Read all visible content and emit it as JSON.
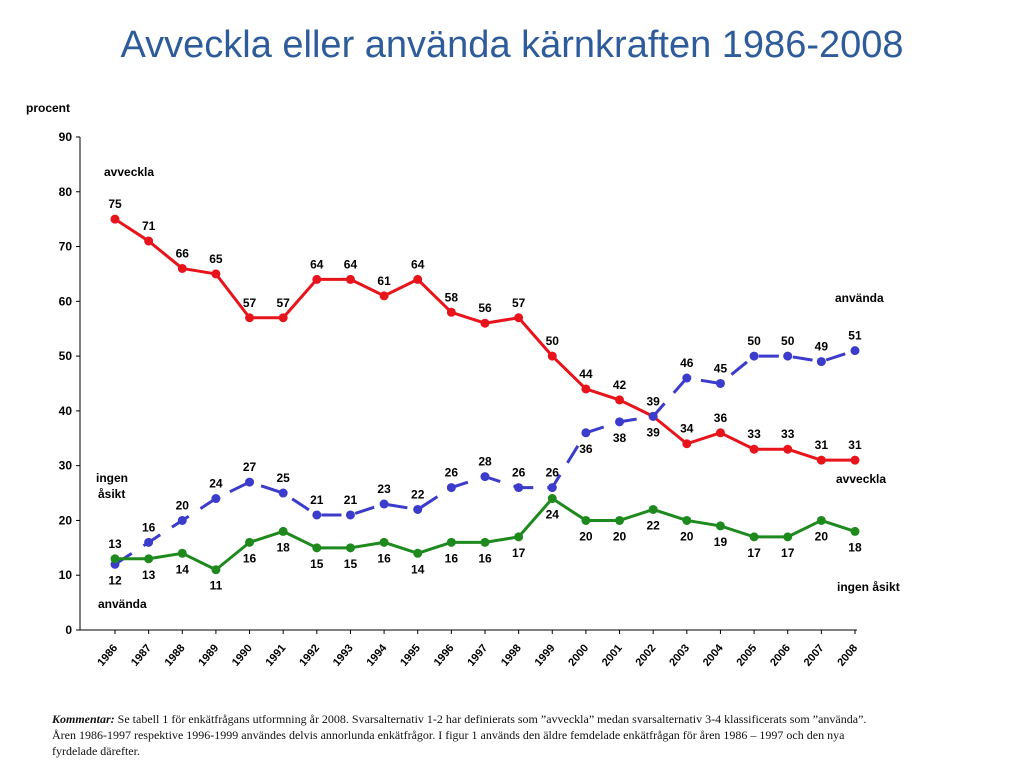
{
  "title": "Avveckla eller använda kärnkraften 1986-2008",
  "chart_data": {
    "type": "line",
    "ylabel": "procent",
    "ylim": [
      0,
      90
    ],
    "yticks": [
      0,
      10,
      20,
      30,
      40,
      50,
      60,
      70,
      80,
      90
    ],
    "categories": [
      "1986",
      "1987",
      "1988",
      "1989",
      "1990",
      "1991",
      "1992",
      "1993",
      "1994",
      "1995",
      "1996",
      "1997",
      "1998",
      "1999",
      "2000",
      "2001",
      "2002",
      "2003",
      "2004",
      "2005",
      "2006",
      "2007",
      "2008"
    ],
    "series": [
      {
        "name": "avveckla",
        "color": "#e8141c",
        "style": "solid",
        "values": [
          75,
          71,
          66,
          65,
          57,
          57,
          64,
          64,
          61,
          64,
          58,
          56,
          57,
          50,
          44,
          42,
          39,
          34,
          36,
          33,
          33,
          31,
          31
        ]
      },
      {
        "name": "använda",
        "color": "#3b3bcc",
        "style": "dashed",
        "values": [
          12,
          16,
          20,
          24,
          27,
          25,
          21,
          21,
          23,
          22,
          26,
          28,
          26,
          26,
          36,
          38,
          39,
          46,
          45,
          50,
          50,
          49,
          51
        ]
      },
      {
        "name": "ingen åsikt",
        "color": "#1e8a1e",
        "style": "solid",
        "values": [
          13,
          13,
          14,
          11,
          16,
          18,
          15,
          15,
          16,
          14,
          16,
          16,
          17,
          24,
          20,
          20,
          22,
          20,
          19,
          17,
          17,
          20,
          18
        ]
      }
    ],
    "annotations": {
      "start_labels": [
        "avveckla",
        "ingen",
        "åsikt",
        "använda"
      ],
      "end_labels": [
        "använda",
        "avveckla",
        "ingen åsikt"
      ]
    }
  },
  "comment": {
    "label": "Kommentar:",
    "text": " Se tabell 1 för enkätfrågans utformning år 2008. Svarsalternativ 1-2 har definierats som ”avveckla” medan svarsalternativ 3-4 klassificerats som ”använda”. Åren 1986-1997 respektive 1996-1999 användes delvis annorlunda enkätfrågor. I figur 1 används den äldre femdelade enkätfrågan för åren 1986 – 1997 och den nya fyrdelade därefter."
  }
}
